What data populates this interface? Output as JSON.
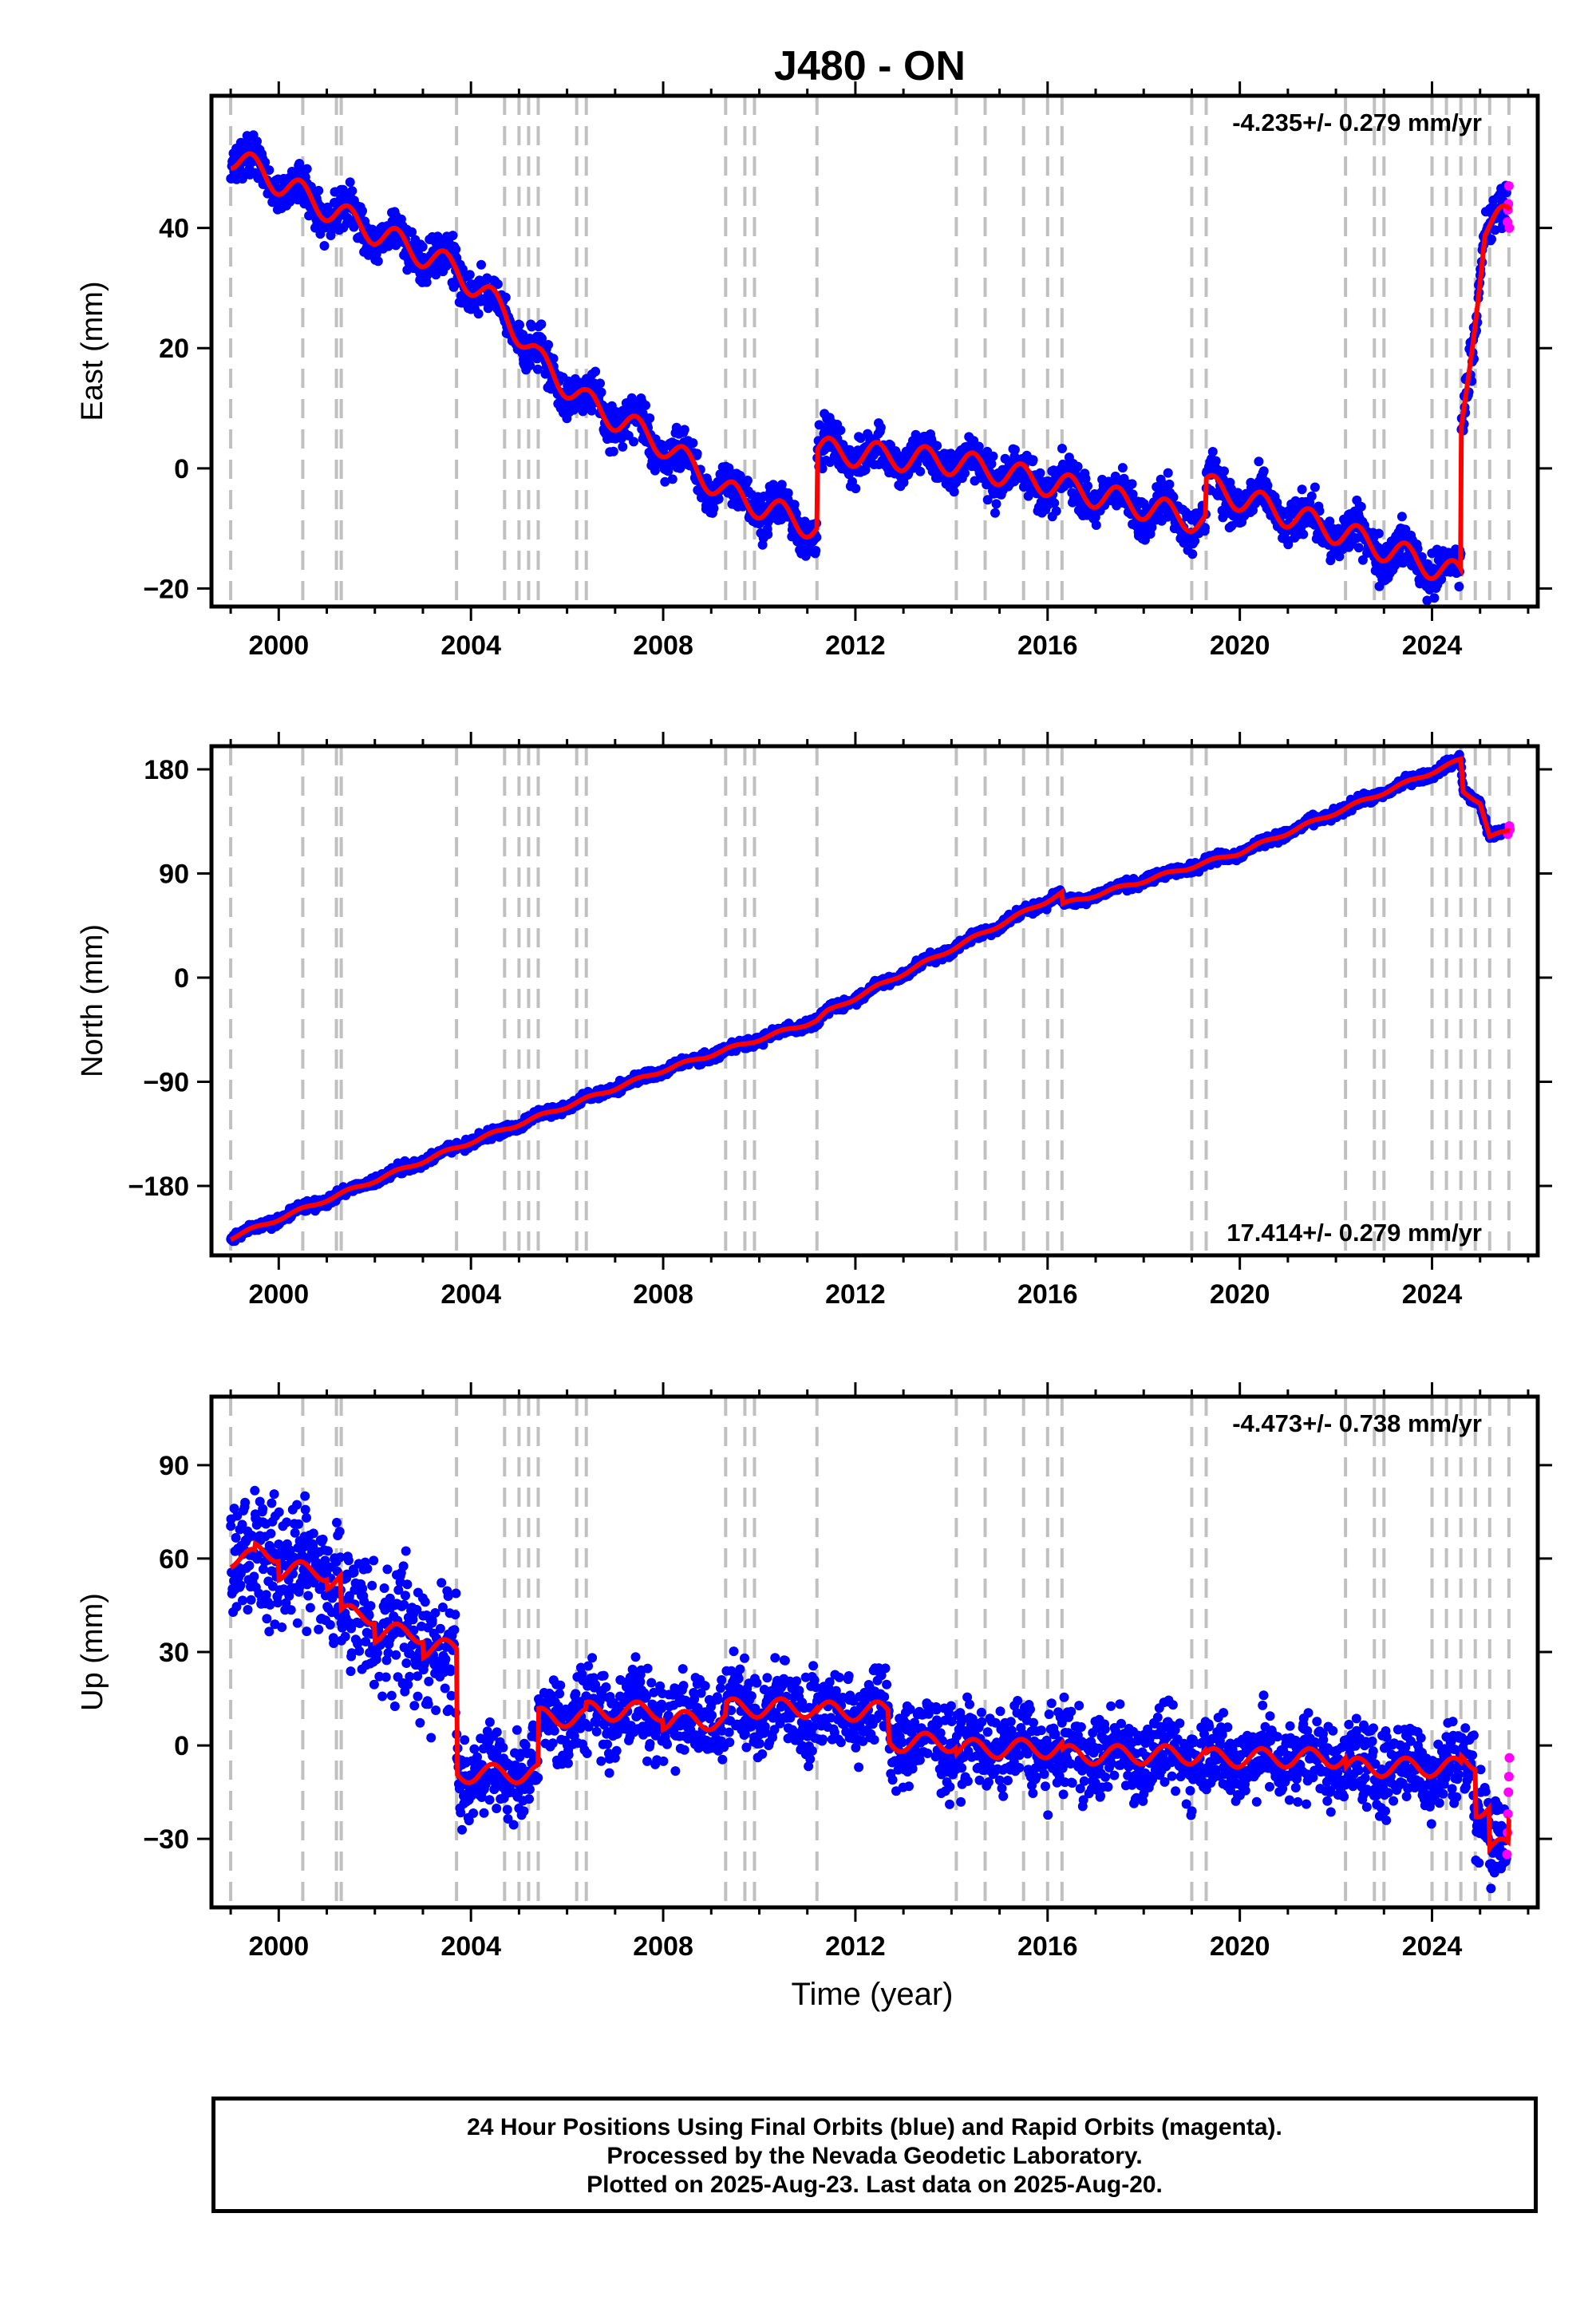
{
  "title": "J480 - ON",
  "x_axis_label": "Time (year)",
  "colors": {
    "final": "#0000ff",
    "rapid": "#ff00ff",
    "model": "#ff0000",
    "events": "#c0c0c0"
  },
  "caption": {
    "line1": "24 Hour Positions Using Final Orbits (blue) and Rapid Orbits (magenta).",
    "line2": "Processed by the Nevada Geodetic Laboratory.",
    "line3": "Plotted on 2025-Aug-23. Last data on 2025-Aug-20."
  },
  "chart_data": [
    {
      "type": "scatter",
      "ylabel": "East (mm)",
      "velocity": "-4.235+/- 0.279 mm/yr",
      "xlim": [
        1998.6,
        2026.2
      ],
      "ylim": [
        -23,
        62
      ],
      "xticks": [
        2000,
        2004,
        2008,
        2012,
        2016,
        2020,
        2024
      ],
      "yticks": [
        -20,
        0,
        20,
        40
      ],
      "ytick_labels": [
        "−20",
        "0",
        "20",
        "40"
      ],
      "model_steps": [
        [
          1999.0,
          52
        ],
        [
          2001.3,
          42
        ],
        [
          2003.7,
          33
        ],
        [
          2004.7,
          26
        ],
        [
          2005.4,
          18
        ],
        [
          2006.4,
          11
        ],
        [
          2008.0,
          4
        ],
        [
          2009.3,
          -4
        ],
        [
          2011.2,
          -10
        ],
        [
          2011.2,
          3
        ],
        [
          2014.1,
          1
        ],
        [
          2016.3,
          -3
        ],
        [
          2019.3,
          -9
        ],
        [
          2019.3,
          -3
        ],
        [
          2022.2,
          -11
        ],
        [
          2024.6,
          -18
        ],
        [
          2024.6,
          5
        ],
        [
          2025.1,
          40
        ],
        [
          2025.6,
          42
        ]
      ],
      "seasonal_amp": 2.2,
      "scatter_sd": 1.8,
      "rapid_points": [
        [
          2025.57,
          41
        ],
        [
          2025.58,
          43
        ],
        [
          2025.59,
          44
        ],
        [
          2025.6,
          47
        ],
        [
          2025.61,
          40
        ]
      ]
    },
    {
      "type": "scatter",
      "ylabel": "North (mm)",
      "velocity": "17.414+/- 0.279 mm/yr",
      "xlim": [
        1998.6,
        2026.2
      ],
      "ylim": [
        -240,
        200
      ],
      "xticks": [
        2000,
        2004,
        2008,
        2012,
        2016,
        2020,
        2024
      ],
      "yticks": [
        -180,
        -90,
        0,
        90,
        180
      ],
      "ytick_labels": [
        "−180",
        "−90",
        "0",
        "90",
        "180"
      ],
      "model_steps": [
        [
          1999.0,
          -225
        ],
        [
          2004.0,
          -142
        ],
        [
          2008.0,
          -80
        ],
        [
          2011.2,
          -37
        ],
        [
          2011.4,
          -30
        ],
        [
          2016.3,
          73
        ],
        [
          2016.3,
          63
        ],
        [
          2020.0,
          108
        ],
        [
          2024.6,
          188
        ],
        [
          2024.65,
          160
        ],
        [
          2025.0,
          152
        ],
        [
          2025.2,
          122
        ],
        [
          2025.6,
          126
        ]
      ],
      "seasonal_amp": 1.5,
      "scatter_sd": 2.2,
      "rapid_points": [
        [
          2025.58,
          124
        ],
        [
          2025.6,
          127
        ],
        [
          2025.61,
          131
        ],
        [
          2025.62,
          128
        ]
      ]
    },
    {
      "type": "scatter",
      "ylabel": "Up (mm)",
      "velocity": "-4.473+/- 0.738 mm/yr",
      "xlim": [
        1998.6,
        2026.2
      ],
      "ylim": [
        -52,
        112
      ],
      "xticks": [
        2000,
        2004,
        2008,
        2012,
        2016,
        2020,
        2024
      ],
      "yticks": [
        -30,
        0,
        30,
        60,
        90
      ],
      "ytick_labels": [
        "−30",
        "0",
        "30",
        "60",
        "90"
      ],
      "model_steps": [
        [
          1999.0,
          60
        ],
        [
          1999.5,
          62
        ],
        [
          2000.0,
          56
        ],
        [
          2001.0,
          53
        ],
        [
          2001.3,
          42
        ],
        [
          2002.0,
          36
        ],
        [
          2003.0,
          31
        ],
        [
          2003.7,
          31
        ],
        [
          2003.7,
          -9
        ],
        [
          2005.4,
          -5
        ],
        [
          2005.4,
          9
        ],
        [
          2006.4,
          11
        ],
        [
          2008.0,
          8
        ],
        [
          2009.3,
          12
        ],
        [
          2011.2,
          11
        ],
        [
          2012.7,
          8
        ],
        [
          2012.7,
          1
        ],
        [
          2014.1,
          -1
        ],
        [
          2016.3,
          -3
        ],
        [
          2019.3,
          -4
        ],
        [
          2022.2,
          -7
        ],
        [
          2024.6,
          -5
        ],
        [
          2024.9,
          -20
        ],
        [
          2025.2,
          -33
        ],
        [
          2025.6,
          -26
        ]
      ],
      "seasonal_amp": 3.0,
      "scatter_sd": 6.5,
      "rapid_points": [
        [
          2025.56,
          -35
        ],
        [
          2025.57,
          -28
        ],
        [
          2025.58,
          -22
        ],
        [
          2025.59,
          -15
        ],
        [
          2025.6,
          -10
        ],
        [
          2025.61,
          -4
        ]
      ]
    }
  ],
  "event_lines": [
    1999.0,
    2000.5,
    2001.2,
    2001.3,
    2003.7,
    2004.7,
    2005.0,
    2005.2,
    2005.4,
    2006.2,
    2006.4,
    2009.3,
    2009.7,
    2009.9,
    2011.2,
    2014.1,
    2014.7,
    2015.5,
    2016.0,
    2016.3,
    2019.0,
    2019.3,
    2022.2,
    2022.8,
    2023.0,
    2024.0,
    2024.3,
    2024.6,
    2024.9,
    2025.2,
    2025.6
  ]
}
